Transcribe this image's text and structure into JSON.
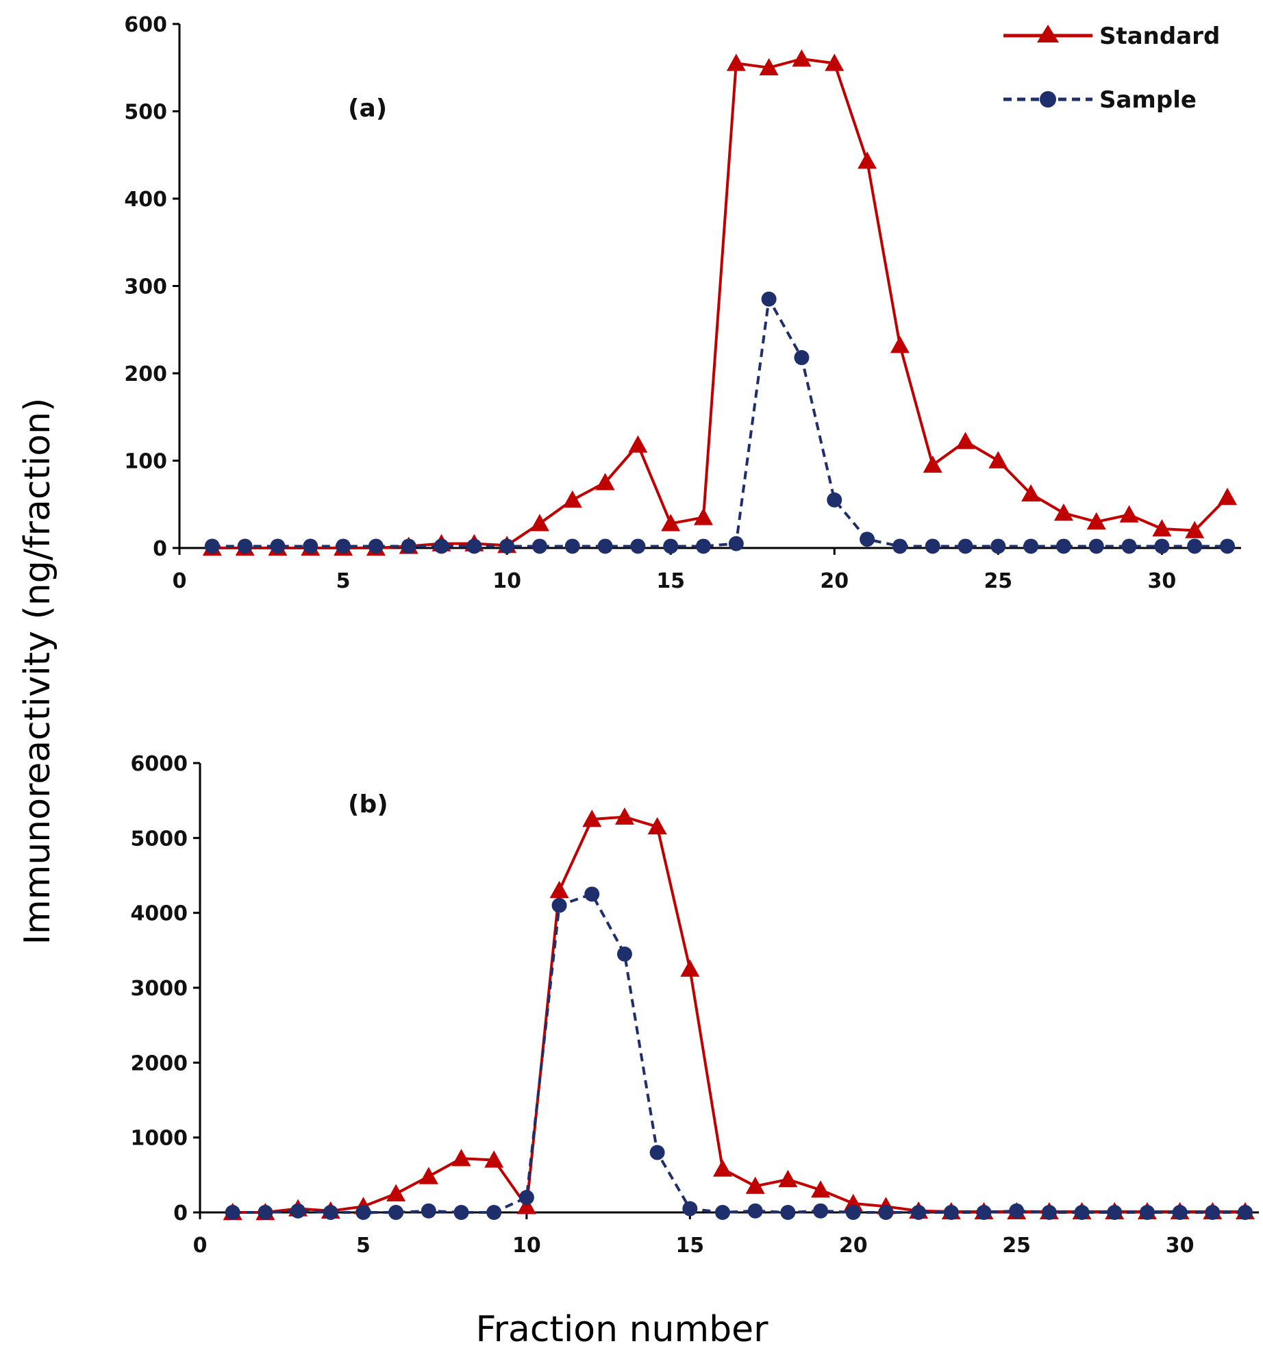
{
  "chart_data": [
    {
      "type": "line",
      "panel_label": "(a)",
      "xlabel": "Fraction number",
      "ylabel": "Immunoreactivity (ng/fraction)",
      "xlim": [
        0,
        32
      ],
      "ylim": [
        0,
        600
      ],
      "xticks": [
        0,
        5,
        10,
        15,
        20,
        25,
        30
      ],
      "yticks": [
        0,
        100,
        200,
        300,
        400,
        500,
        600
      ],
      "legend": {
        "position": "top-right"
      },
      "series": [
        {
          "name": "Standard",
          "color": "#c00000",
          "marker": "triangle",
          "line_style": "solid",
          "x": [
            1,
            2,
            3,
            4,
            5,
            6,
            7,
            8,
            9,
            10,
            11,
            12,
            13,
            14,
            15,
            16,
            17,
            18,
            19,
            20,
            21,
            22,
            23,
            24,
            25,
            26,
            27,
            28,
            29,
            30,
            31,
            32
          ],
          "y": [
            0,
            0,
            0,
            0,
            0,
            0,
            2,
            5,
            5,
            3,
            28,
            55,
            75,
            118,
            28,
            35,
            555,
            550,
            560,
            555,
            443,
            232,
            95,
            122,
            100,
            62,
            40,
            30,
            38,
            22,
            20,
            58
          ]
        },
        {
          "name": "Sample",
          "color": "#1f2f6b",
          "marker": "circle",
          "line_style": "dashed",
          "x": [
            1,
            2,
            3,
            4,
            5,
            6,
            7,
            8,
            9,
            10,
            11,
            12,
            13,
            14,
            15,
            16,
            17,
            18,
            19,
            20,
            21,
            22,
            23,
            24,
            25,
            26,
            27,
            28,
            29,
            30,
            31,
            32
          ],
          "y": [
            2,
            2,
            2,
            2,
            2,
            2,
            2,
            2,
            2,
            2,
            2,
            2,
            2,
            2,
            2,
            2,
            5,
            285,
            218,
            55,
            10,
            2,
            2,
            2,
            2,
            2,
            2,
            2,
            2,
            2,
            2,
            2
          ]
        }
      ]
    },
    {
      "type": "line",
      "panel_label": "(b)",
      "xlabel": "Fraction number",
      "ylabel": "Immunoreactivity (ng/fraction)",
      "xlim": [
        0,
        32
      ],
      "ylim": [
        0,
        6000
      ],
      "xticks": [
        0,
        5,
        10,
        15,
        20,
        25,
        30
      ],
      "yticks": [
        0,
        1000,
        2000,
        3000,
        4000,
        5000,
        6000
      ],
      "series": [
        {
          "name": "Standard",
          "color": "#c00000",
          "marker": "triangle",
          "line_style": "solid",
          "x": [
            1,
            2,
            3,
            4,
            5,
            6,
            7,
            8,
            9,
            10,
            11,
            12,
            13,
            14,
            15,
            16,
            17,
            18,
            19,
            20,
            21,
            22,
            23,
            24,
            25,
            26,
            27,
            28,
            29,
            30,
            31,
            32
          ],
          "y": [
            0,
            0,
            50,
            20,
            80,
            250,
            480,
            720,
            700,
            80,
            4300,
            5250,
            5280,
            5150,
            3250,
            580,
            350,
            440,
            300,
            120,
            80,
            20,
            10,
            10,
            10,
            10,
            10,
            10,
            10,
            10,
            10,
            10
          ]
        },
        {
          "name": "Sample",
          "color": "#1f2f6b",
          "marker": "circle",
          "line_style": "dashed",
          "x": [
            1,
            2,
            3,
            4,
            5,
            6,
            7,
            8,
            9,
            10,
            11,
            12,
            13,
            14,
            15,
            16,
            17,
            18,
            19,
            20,
            21,
            22,
            23,
            24,
            25,
            26,
            27,
            28,
            29,
            30,
            31,
            32
          ],
          "y": [
            0,
            0,
            20,
            0,
            0,
            0,
            20,
            0,
            0,
            200,
            4100,
            4250,
            3450,
            800,
            50,
            0,
            20,
            0,
            20,
            0,
            0,
            0,
            0,
            0,
            20,
            0,
            0,
            0,
            0,
            0,
            0,
            0
          ]
        }
      ]
    }
  ]
}
